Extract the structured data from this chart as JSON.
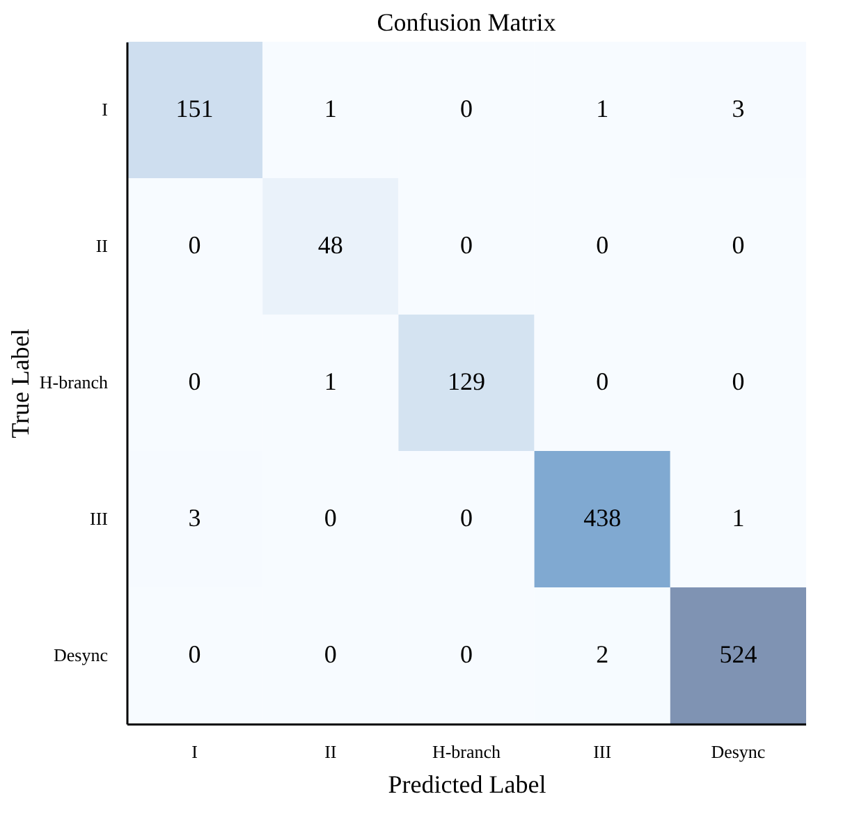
{
  "chart_data": {
    "type": "heatmap",
    "title": "Confusion Matrix",
    "xlabel": "Predicted Label",
    "ylabel": "True Label",
    "categories": [
      "I",
      "II",
      "H-branch",
      "III",
      "Desync"
    ],
    "y_categories": [
      "I",
      "II",
      "H-branch",
      "III",
      "Desync"
    ],
    "cells": [
      [
        151,
        1,
        0,
        1,
        3
      ],
      [
        0,
        48,
        0,
        0,
        0
      ],
      [
        0,
        1,
        129,
        0,
        0
      ],
      [
        3,
        0,
        0,
        438,
        1
      ],
      [
        0,
        0,
        0,
        2,
        524
      ]
    ],
    "data_labels": true,
    "legend": false,
    "grid": false
  }
}
